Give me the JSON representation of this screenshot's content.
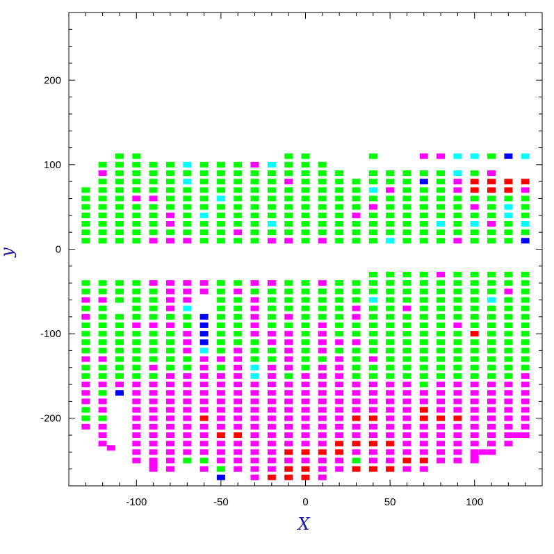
{
  "chart_data": {
    "type": "heatmap",
    "title": "",
    "xlabel": "X",
    "ylabel": "y",
    "xlim": [
      -140,
      140
    ],
    "ylim": [
      -280,
      280
    ],
    "xticks": [
      -100,
      -50,
      0,
      50,
      100
    ],
    "yticks": [
      -200,
      -100,
      0,
      100,
      200
    ],
    "xtick_labels": [
      "-100",
      "-50",
      "0",
      "50",
      "100"
    ],
    "ytick_labels": [
      "-200",
      "-100",
      "0",
      "100",
      "200"
    ],
    "grid": false,
    "legend": "none",
    "cell_size": {
      "dx": 5,
      "dy": 7
    },
    "colors": {
      "G": "#00ff00",
      "M": "#ff00ff",
      "C": "#00ffff",
      "B": "#0000ff",
      "R": "#ff0000"
    },
    "column_x": [
      -130,
      -120,
      -110,
      -100,
      -90,
      -80,
      -70,
      -60,
      -50,
      -40,
      -30,
      -20,
      -10,
      0,
      10,
      20,
      30,
      40,
      50,
      60,
      70,
      80,
      90,
      100,
      110,
      120,
      130
    ],
    "upper_rows": [
      {
        "y": 110,
        "cells": ".  .  G  G  .  .  .  .  .  .  .  .  G  G  .  .  .  G  .  .  M  M  C  C  G  B  C"
      },
      {
        "y": 100,
        "cells": ".  G  G  G  G  G  C  G  G  G  M  C  G  G  G  .  .  .  .  .  .  .  .  .  .  .  ."
      },
      {
        "y": 90,
        "cells": ".  M  G  G  G  G  G  G  G  G  G  G  G  G  G  G  .  G  G  G  G  G  C  G  M  .  ."
      },
      {
        "y": 80,
        "cells": ".  G  G  G  G  G  C  G  G  G  G  G  M  G  G  G  G  G  G  G  B  G  M  R  R  R  R"
      },
      {
        "y": 70,
        "cells": "G  G  G  G  G  G  G  G  G  G  G  G  G  G  G  G  G  C  M  G  G  G  M  R  R  R  M"
      },
      {
        "y": 60,
        "cells": "G  G  G  M  M  G  G  G  C  G  G  G  G  G  G  G  G  G  G  G  G  G  G  G  G  G  G"
      },
      {
        "y": 50,
        "cells": "G  G  G  G  G  G  G  G  G  G  G  G  G  G  G  G  G  M  G  G  G  G  G  M  G  C  G"
      },
      {
        "y": 40,
        "cells": "G  G  G  G  G  M  G  C  G  G  G  G  G  G  G  G  M  G  G  G  G  G  G  G  G  C  G"
      },
      {
        "y": 30,
        "cells": "G  G  G  G  G  M  G  G  G  G  G  C  G  G  G  G  G  G  G  G  G  C  G  C  M  G  C"
      },
      {
        "y": 20,
        "cells": "G  G  G  G  G  G  G  G  G  M  G  G  G  G  G  G  G  G  G  G  G  G  G  G  G  G  G"
      },
      {
        "y": 10,
        "cells": "G  G  G  G  M  M  M  G  G  G  G  M  M  G  M  G  G  G  C  G  G  G  M  G  G  G  B"
      }
    ],
    "lower_rows": [
      {
        "y": -30,
        "cells": ".  .  .  .  .  .  .  .  .  .  .  .  .  .  .  .  .  G  G  G  G  M  G  G  G  G  G"
      },
      {
        "y": -40,
        "cells": "G  G  G  G  M  M  M  M  G  G  M  M  G  G  M  G  G  G  G  G  G  G  G  G  G  G  G"
      },
      {
        "y": -50,
        "cells": "G  G  G  G  G  M  M  M  G  M  G  G  G  G  G  G  G  G  G  G  G  G  G  G  G  M  G"
      },
      {
        "y": -60,
        "cells": "M  M  G  G  G  M  M  .  G  G  M  G  G  G  G  G  G  C  G  G  G  G  G  G  C  G  G"
      },
      {
        "y": -70,
        "cells": "G  G  .  G  G  M  C  .  G  G  M  G  G  G  G  G  M  G  G  M  G  G  G  G  G  G  G"
      },
      {
        "y": -80,
        "cells": "M  G  G  G  G  G  G  B  G  G  M  G  M  G  G  G  M  G  G  G  G  G  G  G  G  G  G"
      },
      {
        "y": -90,
        "cells": "G  G  G  M  M  M  G  B  G  G  M  G  G  G  M  G  G  G  G  G  G  G  M  G  G  G  G"
      },
      {
        "y": -100,
        "cells": "G  G  G  G  G  G  M  B  G  G  M  M  M  G  M  G  G  G  G  G  G  G  G  R  G  G  G"
      },
      {
        "y": -110,
        "cells": "G  G  G  G  G  G  M  B  G  G  G  M  M  G  M  M  M  G  G  G  G  G  G  G  G  G  G"
      },
      {
        "y": -120,
        "cells": "G  G  G  G  G  G  M  C  G  M  G  G  M  G  M  G  G  G  G  G  G  G  G  G  G  G  G"
      },
      {
        "y": -130,
        "cells": "M  M  G  G  G  G  G  M  M  M  G  G  M  G  G  M  G  M  G  G  G  G  G  G  G  G  G"
      },
      {
        "y": -140,
        "cells": "G  G  G  G  M  G  G  M  G  M  C  M  M  G  M  M  G  G  G  G  G  G  G  G  G  G  G"
      },
      {
        "y": -150,
        "cells": "G  G  G  G  G  M  M  M  M  M  C  M  G  M  M  M  G  G  G  G  G  G  G  G  G  G  M"
      },
      {
        "y": -160,
        "cells": "M  M  M  M  M  M  M  M  M  M  M  M  M  M  M  M  M  M  M  M  G  M  M  M  M  M  M"
      },
      {
        "y": -170,
        "cells": "M  G  B  M  M  M  M  M  M  M  M  M  M  M  M  M  M  M  M  M  M  M  M  M  M  M  M"
      },
      {
        "y": -180,
        "cells": "M  M  .  M  M  M  M  M  M  M  M  M  M  M  M  M  M  M  M  M  M  M  M  M  M  M  M"
      },
      {
        "y": -190,
        "cells": "G  M  .  M  M  M  M  M  M  M  M  M  M  M  M  M  M  M  M  M  R  M  M  M  M  M  M"
      },
      {
        "y": -200,
        "cells": "G  G  .  M  M  M  M  R  M  M  M  M  M  M  M  M  R  R  M  M  R  R  R  M  M  M  M"
      },
      {
        "y": -210,
        "cells": "M  M  .  M  M  M  M  M  M  M  M  M  M  M  M  M  M  M  M  M  M  M  M  M  M  M  M"
      },
      {
        "y": -220,
        "cells": ".  M  .  M  M  M  M  M  R  R  M  M  M  M  M  M  M  M  M  M  M  M  M  M  M  M  M"
      },
      {
        "y": -230,
        "cells": ".  M  .  M  M  M  M  M  M  M  M  M  M  M  M  R  R  R  R  M  M  M  M  M  M  M  ."
      },
      {
        "y": -240,
        "cells": ".  .  .  M  M  M  M  M  M  M  M  M  R  R  R  R  M  M  M  M  M  M  M  M  M  .  ."
      },
      {
        "y": -250,
        "cells": ".  .  .  M  M  M  G  G  M  M  M  M  M  M  M  M  G  M  M  R  R  M  M  M  .  .  ."
      },
      {
        "y": -260,
        "cells": ".  .  .  .  M  M  .  M  G  M  M  M  R  R  M  M  R  R  R  M  M  .  .  .  .  .  ."
      },
      {
        "y": -270,
        "cells": ".  .  .  .  .  .  .  .  B  .  M  R  R  R  M  .  .  .  .  .  .  .  .  .  .  .  ."
      }
    ],
    "extra_cells": [
      {
        "x": -115,
        "y": -235,
        "c": "M"
      },
      {
        "x": -90,
        "y": -255,
        "c": "M"
      },
      {
        "x": 100,
        "y": -245,
        "c": "M"
      },
      {
        "x": 105,
        "y": -240,
        "c": "M"
      },
      {
        "x": 125,
        "y": -220,
        "c": "M"
      }
    ]
  }
}
